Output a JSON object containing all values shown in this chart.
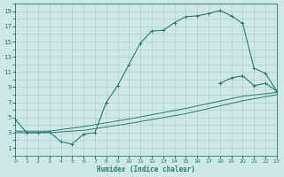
{
  "xlabel": "Humidex (Indice chaleur)",
  "bg_color": "#cde8e5",
  "line_color": "#2d7a72",
  "grid_color": "#a8ceca",
  "xlim": [
    0,
    23
  ],
  "ylim": [
    0,
    20
  ],
  "xticks": [
    0,
    1,
    2,
    3,
    4,
    5,
    6,
    7,
    8,
    9,
    10,
    11,
    12,
    13,
    14,
    15,
    16,
    17,
    18,
    19,
    20,
    21,
    22,
    23
  ],
  "yticks": [
    1,
    3,
    5,
    7,
    9,
    11,
    13,
    15,
    17,
    19
  ],
  "curve1_x": [
    0,
    1,
    2,
    3,
    4,
    5,
    6,
    7,
    8,
    9,
    10,
    11,
    12,
    13,
    14,
    15,
    16,
    17,
    18,
    19,
    20,
    21,
    22,
    23
  ],
  "curve1_y": [
    4.7,
    3.0,
    3.0,
    3.1,
    1.8,
    1.5,
    2.8,
    3.0,
    7.0,
    9.2,
    12.0,
    14.8,
    16.4,
    16.5,
    17.5,
    18.3,
    18.4,
    18.7,
    19.1,
    18.4,
    17.4,
    11.5,
    10.8,
    8.5
  ],
  "curve1_markers_x": [
    0,
    1,
    2,
    3,
    4,
    5,
    6,
    7,
    8,
    9,
    10,
    11,
    12,
    13,
    14,
    15,
    16,
    17,
    18
  ],
  "curve1_markers_y": [
    4.7,
    3.0,
    3.0,
    3.1,
    1.8,
    1.5,
    2.8,
    3.0,
    7.0,
    9.2,
    12.0,
    14.8,
    16.4,
    16.5,
    17.5,
    18.3,
    18.4,
    18.7,
    19.1
  ],
  "curve2_x": [
    0,
    3,
    6,
    10,
    15,
    20,
    23
  ],
  "curve2_y": [
    3.0,
    3.0,
    3.3,
    4.2,
    5.5,
    7.2,
    8.0
  ],
  "curve3_x": [
    0,
    3,
    6,
    10,
    15,
    20,
    23
  ],
  "curve3_y": [
    3.2,
    3.2,
    3.8,
    4.8,
    6.2,
    7.8,
    8.3
  ],
  "curve4_x": [
    18,
    19,
    20,
    21,
    22,
    23
  ],
  "curve4_y": [
    9.5,
    10.2,
    10.5,
    9.2,
    9.5,
    8.5
  ]
}
